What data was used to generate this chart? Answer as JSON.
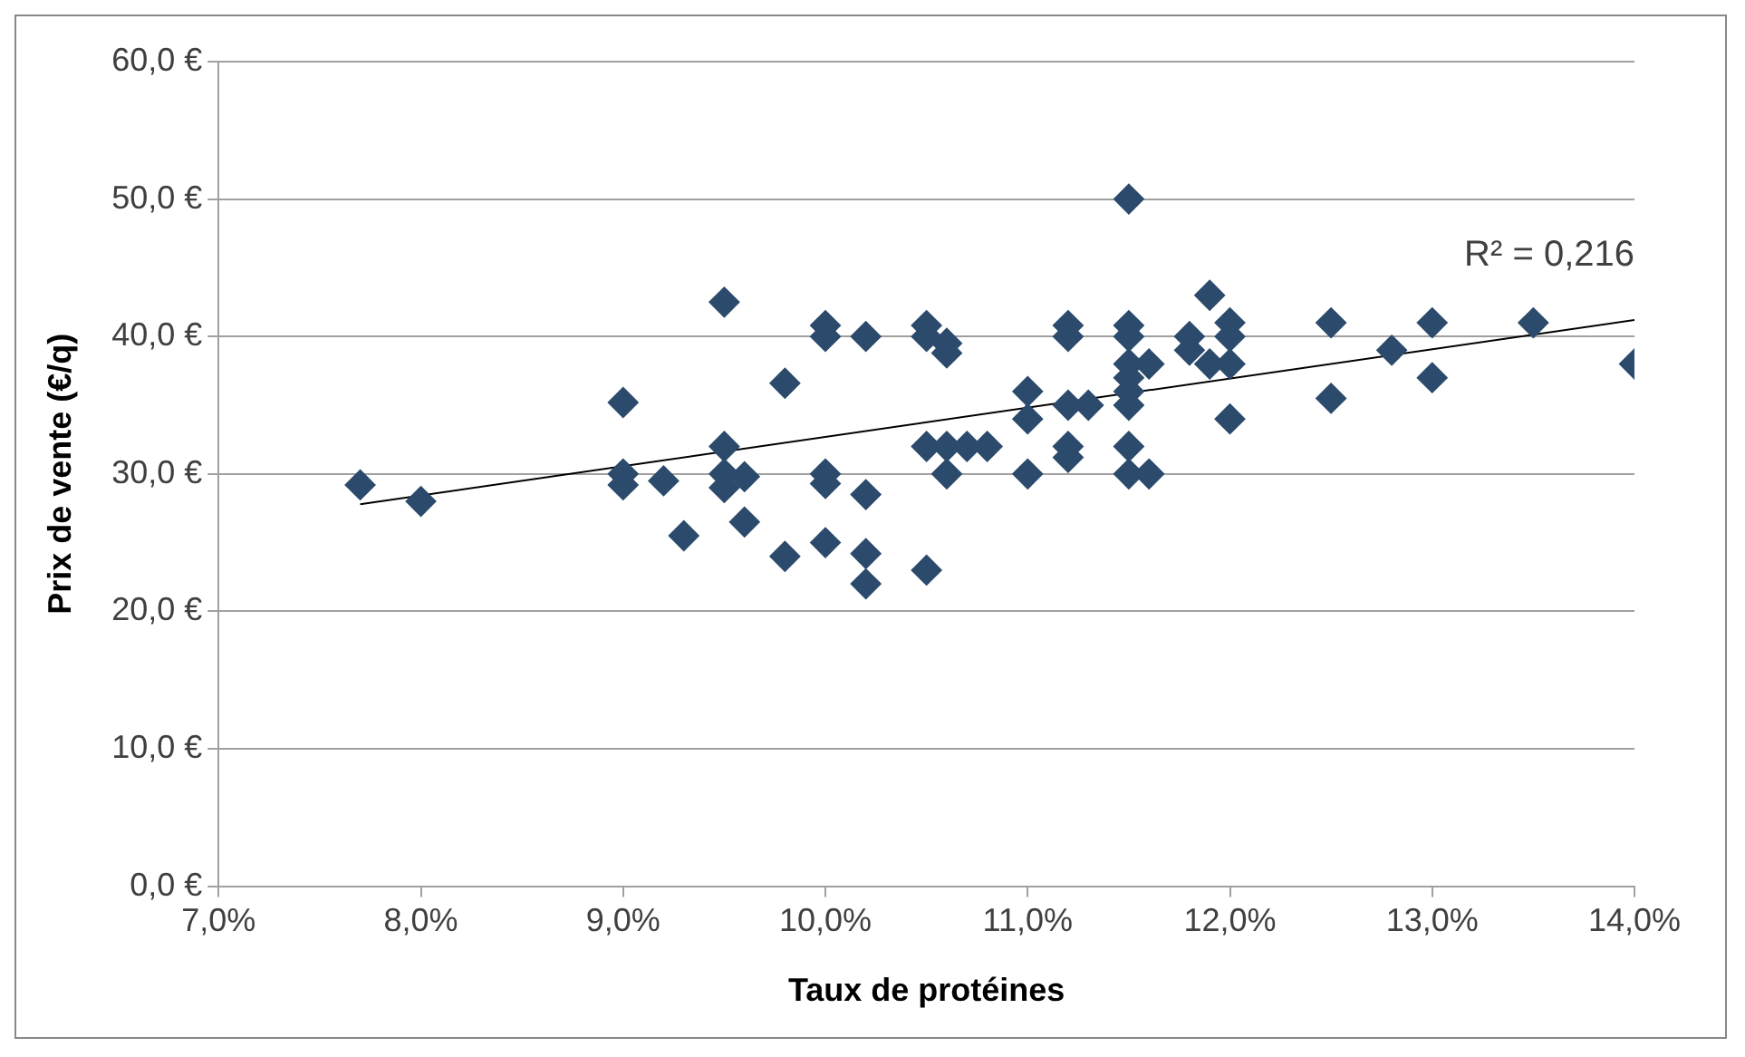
{
  "chart_data": {
    "type": "scatter",
    "xlabel": "Taux de protéines",
    "ylabel": "Prix de vente (€/q)",
    "grid": "y",
    "legend": false,
    "xlim": [
      7,
      14
    ],
    "xticks": [
      {
        "value": 7,
        "label": "7,0%"
      },
      {
        "value": 8,
        "label": "8,0%"
      },
      {
        "value": 9,
        "label": "9,0%"
      },
      {
        "value": 10,
        "label": "10,0%"
      },
      {
        "value": 11,
        "label": "11,0%"
      },
      {
        "value": 12,
        "label": "12,0%"
      },
      {
        "value": 13,
        "label": "13,0%"
      },
      {
        "value": 14,
        "label": "14,0%"
      }
    ],
    "ylim": [
      0,
      60
    ],
    "yticks": [
      {
        "value": 0,
        "label": "0,0 €"
      },
      {
        "value": 10,
        "label": "10,0 €"
      },
      {
        "value": 20,
        "label": "20,0 €"
      },
      {
        "value": 30,
        "label": "30,0 €"
      },
      {
        "value": 40,
        "label": "40,0 €"
      },
      {
        "value": 50,
        "label": "50,0 €"
      },
      {
        "value": 60,
        "label": "60,0 €"
      }
    ],
    "series": [
      {
        "marker": "diamond",
        "color": "#2b4a6c",
        "x": [
          7.7,
          8.0,
          9.0,
          9.0,
          9.0,
          9.2,
          9.3,
          9.5,
          9.5,
          9.5,
          9.5,
          9.6,
          9.6,
          9.8,
          9.8,
          10.0,
          10.0,
          10.0,
          10.0,
          10.0,
          10.2,
          10.2,
          10.2,
          10.2,
          10.5,
          10.5,
          10.5,
          10.5,
          10.6,
          10.6,
          10.6,
          10.6,
          10.7,
          10.8,
          11.0,
          11.0,
          11.0,
          11.2,
          11.2,
          11.2,
          11.2,
          11.2,
          11.3,
          11.5,
          11.5,
          11.5,
          11.5,
          11.5,
          11.5,
          11.5,
          11.5,
          11.5,
          11.6,
          11.6,
          11.8,
          11.8,
          11.9,
          11.9,
          12.0,
          12.0,
          12.0,
          12.0,
          12.5,
          12.5,
          12.8,
          13.0,
          13.0,
          13.5,
          14.0
        ],
        "values": [
          29.2,
          28,
          35.2,
          30,
          29.2,
          29.5,
          25.5,
          42.5,
          32,
          30,
          29,
          29.8,
          26.5,
          36.6,
          24,
          40.8,
          40,
          30,
          29.3,
          25,
          40,
          28.5,
          24.2,
          22,
          40.8,
          40,
          32,
          23,
          39.5,
          38.8,
          32,
          30,
          32,
          32,
          36,
          34,
          30,
          40.8,
          40,
          35,
          32,
          31.2,
          35,
          50,
          40.8,
          40,
          38,
          37,
          36,
          35,
          32,
          30,
          38,
          30,
          40,
          39,
          43,
          38,
          41,
          40,
          38,
          34,
          41,
          35.5,
          39,
          41,
          37,
          41,
          38
        ]
      },
      {
        "type": "line",
        "marker": "none",
        "color": "#000000",
        "x": [
          7.7,
          14.0
        ],
        "values": [
          27.8,
          41.2
        ]
      }
    ],
    "annotations": [
      "R² = 0,216"
    ]
  }
}
